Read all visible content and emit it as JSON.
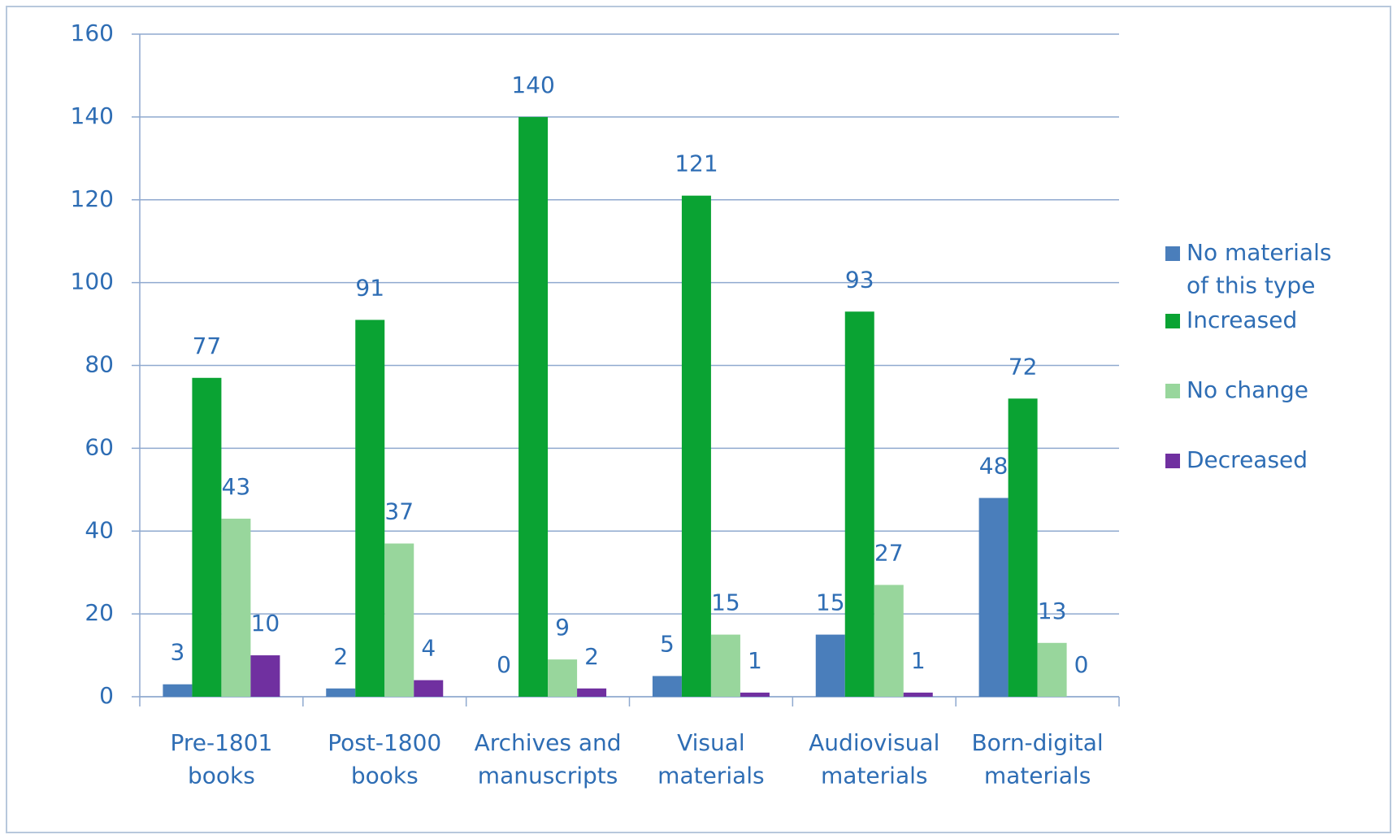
{
  "chart_data": {
    "type": "bar",
    "categories": [
      "Pre-1801\nbooks",
      "Post-1800\nbooks",
      "Archives and\nmanuscripts",
      "Visual\nmaterials",
      "Audiovisual\nmaterials",
      "Born-digital\nmaterials"
    ],
    "series": [
      {
        "name": "No materials\nof this type",
        "color": "#4a7ebb",
        "values": [
          3,
          2,
          0,
          5,
          15,
          48
        ]
      },
      {
        "name": "Increased",
        "color": "#0aa333",
        "values": [
          77,
          91,
          140,
          121,
          93,
          72
        ]
      },
      {
        "name": "No change",
        "color": "#98d69c",
        "values": [
          43,
          37,
          9,
          15,
          27,
          13
        ]
      },
      {
        "name": "Decreased",
        "color": "#7030a0",
        "values": [
          10,
          4,
          2,
          1,
          1,
          0
        ]
      }
    ],
    "ylim": [
      0,
      160
    ],
    "yticks": [
      0,
      20,
      40,
      60,
      80,
      100,
      120,
      140,
      160
    ],
    "grid": true,
    "legend": "right"
  }
}
